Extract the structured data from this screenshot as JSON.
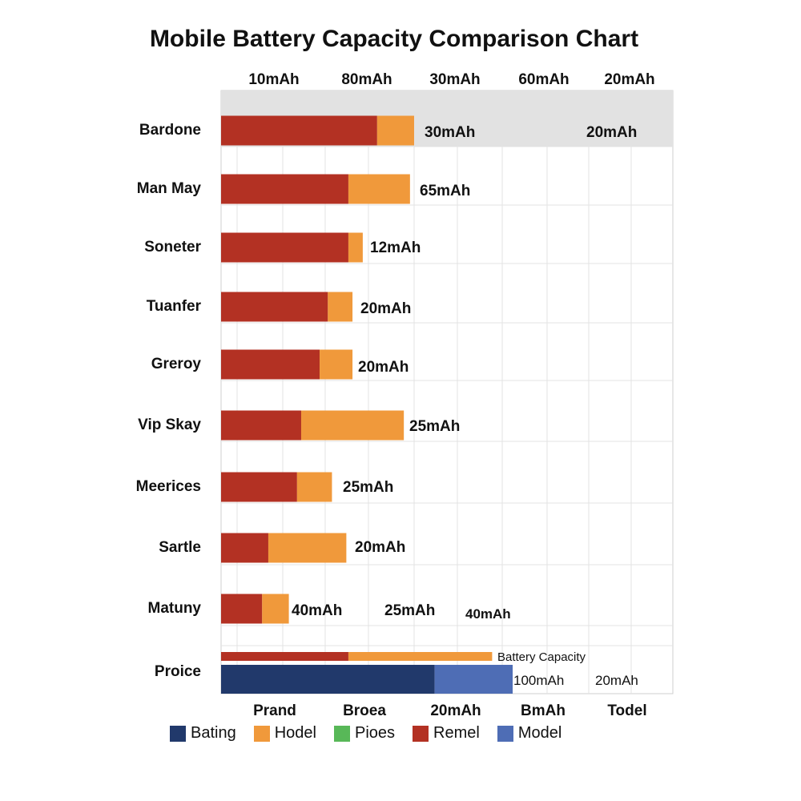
{
  "chart_data": {
    "type": "bar",
    "orientation": "horizontal",
    "stacked": true,
    "title": "Mobile Battery Capacity Comparison Chart",
    "top_tick_labels": [
      "10mAh",
      "80mAh",
      "30mAh",
      "60mAh",
      "20mAh"
    ],
    "bottom_tick_labels": [
      "Prand",
      "Broea",
      "20mAh",
      "BmAh",
      "Todel"
    ],
    "categories": [
      "Bardone",
      "Man May",
      "Soneter",
      "Tuanfer",
      "Greroy",
      "Vip Skay",
      "Meerices",
      "Sartle",
      "Matuny",
      "Proice"
    ],
    "series": [
      {
        "name": "Remel",
        "color": "#b33123",
        "values": [
          38,
          31,
          31,
          26,
          24,
          19.5,
          18.5,
          11.5,
          10,
          31
        ]
      },
      {
        "name": "Hodel",
        "color": "#f0993b",
        "values": [
          9,
          15,
          3.5,
          6,
          8,
          25,
          8.5,
          19,
          6.5,
          35
        ]
      },
      {
        "name": "Bating",
        "color": "#21396b",
        "values": [
          0,
          0,
          0,
          0,
          0,
          0,
          0,
          0,
          0,
          52
        ]
      },
      {
        "name": "Model",
        "color": "#4e6db5",
        "values": [
          0,
          0,
          0,
          0,
          0,
          0,
          0,
          0,
          0,
          19
        ]
      },
      {
        "name": "Pioes",
        "color": "#58b858",
        "values": [
          0,
          0,
          0,
          0,
          0,
          0,
          0,
          0,
          0,
          0
        ]
      }
    ],
    "bar_annotations": [
      [
        "30mAh",
        "20mAh"
      ],
      [
        "65mAh"
      ],
      [
        "12mAh"
      ],
      [
        "20mAh"
      ],
      [
        "20mAh"
      ],
      [
        "25mAh"
      ],
      [
        "25mAh"
      ],
      [
        "20mAh"
      ],
      [
        "40mAh",
        "25mAh",
        "40mAh"
      ],
      [
        "Battery Capacity",
        "100mAh",
        "20mAh"
      ]
    ],
    "xlim": [
      0,
      110
    ],
    "grid": true,
    "legend_position": "bottom",
    "legend": [
      {
        "label": "Bating",
        "color": "#21396b"
      },
      {
        "label": "Hodel",
        "color": "#f0993b"
      },
      {
        "label": "Pioes",
        "color": "#58b858"
      },
      {
        "label": "Remel",
        "color": "#b33123"
      },
      {
        "label": "Model",
        "color": "#4e6db5"
      }
    ]
  }
}
